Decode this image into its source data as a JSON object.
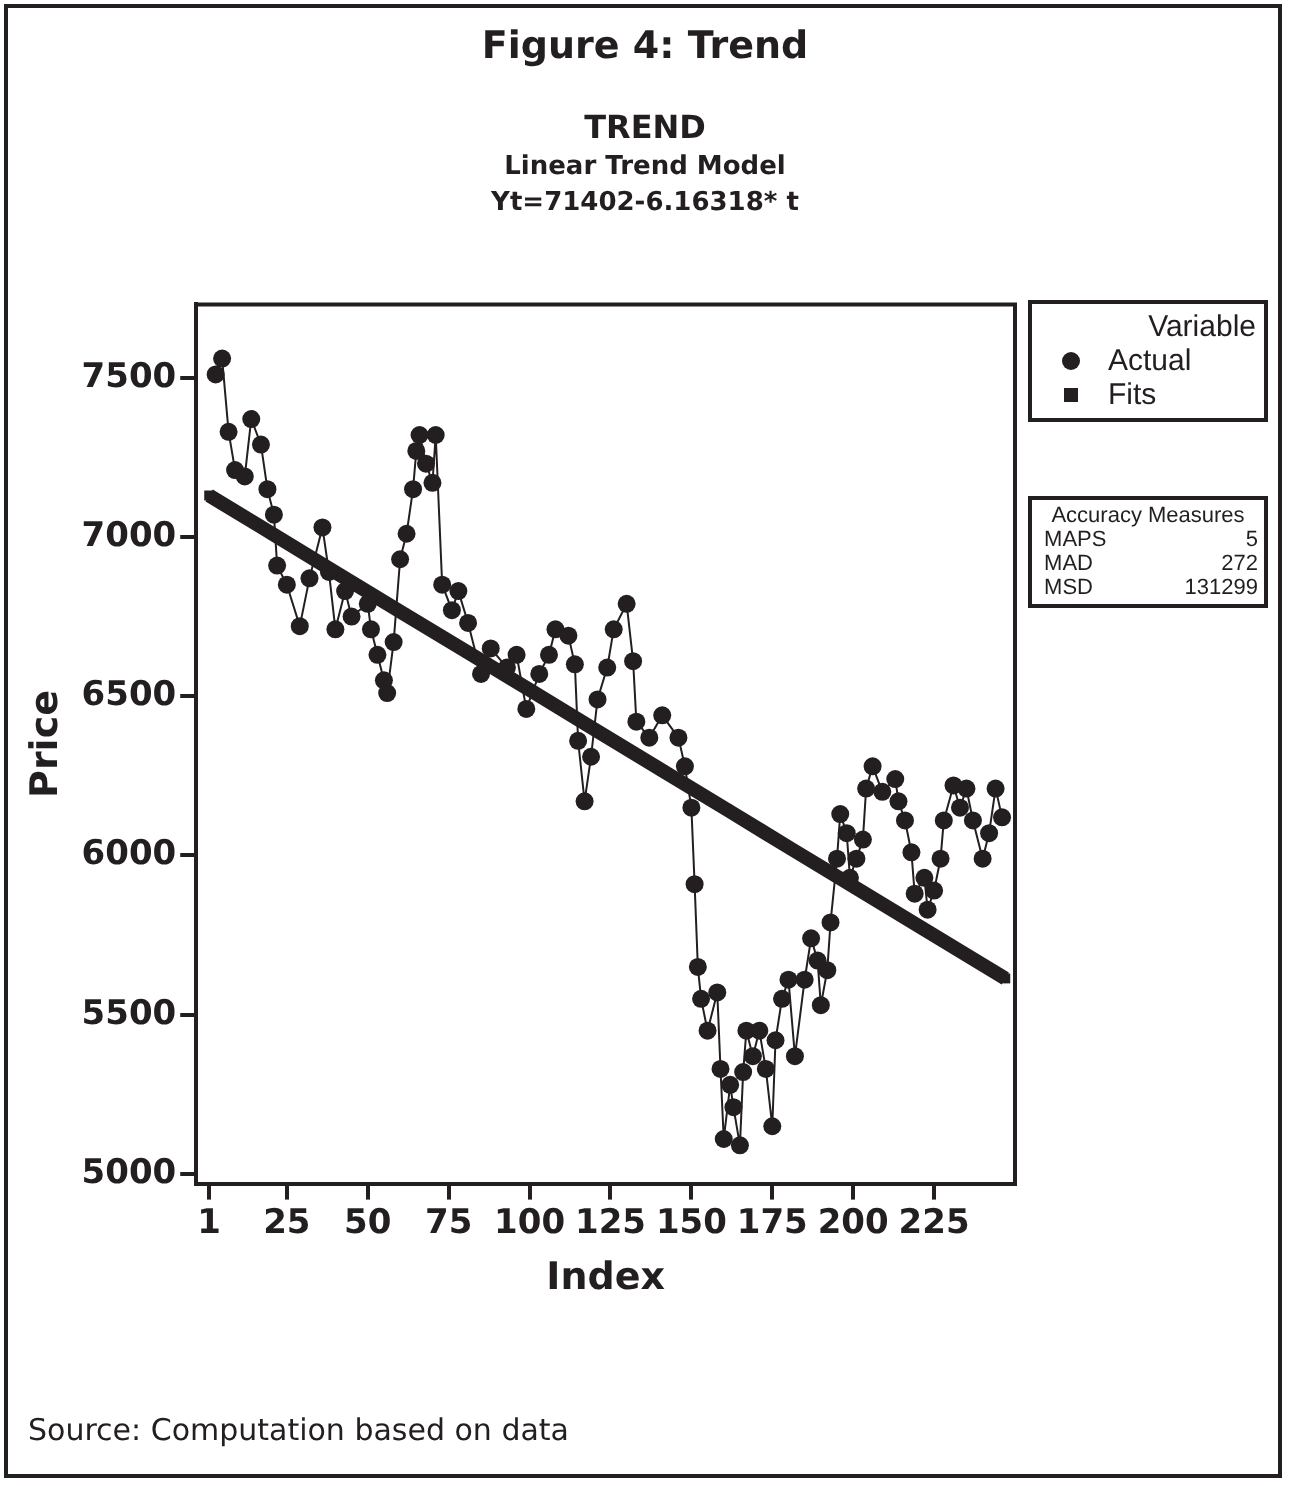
{
  "chart_data": {
    "type": "line",
    "title": "Figure 4:  Trend",
    "subtitle": "TREND",
    "xlabel": "Index",
    "ylabel": "Price",
    "legend_title": "Variable",
    "annotations": [
      "Linear Trend Model",
      "Yt=71402-6.16318* t",
      "Accuracy Measures",
      "MAPS 5",
      "MAD 272",
      "MSD 131299",
      "Source: Computation based on data"
    ],
    "xlim": [
      -3,
      250
    ],
    "xticks": [
      1,
      25,
      50,
      75,
      100,
      125,
      150,
      175,
      200,
      225
    ],
    "ylim": [
      4970,
      7730
    ],
    "yticks": [
      5000,
      5500,
      6000,
      6500,
      7000,
      7500
    ],
    "grid": false,
    "legend": "right",
    "series": [
      {
        "name": "Actual",
        "color": "#231f20",
        "marker": "circle",
        "x": [
          3,
          5,
          7,
          9,
          12,
          14,
          17,
          19,
          21,
          22,
          25,
          29,
          32,
          36,
          38,
          40,
          43,
          45,
          50,
          51,
          53,
          55,
          56,
          58,
          60,
          62,
          64,
          65,
          66,
          68,
          70,
          71,
          73,
          76,
          78,
          81,
          85,
          88,
          93,
          96,
          99,
          103,
          106,
          108,
          112,
          114,
          115,
          117,
          119,
          121,
          124,
          126,
          130,
          132,
          133,
          137,
          141,
          146,
          148,
          150,
          151,
          152,
          153,
          155,
          158,
          159,
          160,
          162,
          163,
          165,
          166,
          167,
          169,
          171,
          173,
          175,
          176,
          178,
          180,
          182,
          185,
          187,
          189,
          190,
          192,
          193,
          195,
          196,
          198,
          199,
          201,
          203,
          204,
          206,
          209,
          213,
          214,
          216,
          218,
          219,
          222,
          223,
          225,
          227,
          228,
          231,
          233,
          235,
          237,
          240,
          242,
          244,
          246
        ],
        "values": [
          7510,
          7560,
          7330,
          7210,
          7190,
          7370,
          7290,
          7150,
          7070,
          6910,
          6850,
          6720,
          6870,
          7030,
          6890,
          6710,
          6830,
          6750,
          6790,
          6710,
          6630,
          6550,
          6510,
          6670,
          6930,
          7010,
          7150,
          7270,
          7320,
          7230,
          7170,
          7320,
          6850,
          6770,
          6830,
          6730,
          6570,
          6650,
          6590,
          6630,
          6460,
          6570,
          6630,
          6710,
          6690,
          6600,
          6360,
          6170,
          6310,
          6490,
          6590,
          6710,
          6790,
          6610,
          6420,
          6370,
          6440,
          6370,
          6280,
          6150,
          5910,
          5650,
          5550,
          5450,
          5570,
          5330,
          5110,
          5280,
          5210,
          5090,
          5320,
          5450,
          5370,
          5450,
          5330,
          5150,
          5420,
          5550,
          5610,
          5370,
          5610,
          5740,
          5670,
          5530,
          5640,
          5790,
          5990,
          6130,
          6070,
          5930,
          5990,
          6050,
          6210,
          6280,
          6200,
          6240,
          6170,
          6110,
          6010,
          5880,
          5930,
          5830,
          5890,
          5990,
          6110,
          6220,
          6150,
          6210,
          6110,
          5990,
          6070,
          6210,
          6120
        ]
      },
      {
        "name": "Fits",
        "type": "line",
        "color": "#231f20",
        "marker": "square",
        "x": [
          1,
          21,
          41,
          61,
          81,
          101,
          121,
          141,
          161,
          181,
          201,
          221,
          247
        ],
        "values": [
          7130,
          7007,
          6883,
          6760,
          6637,
          6514,
          6390,
          6267,
          6144,
          6020,
          5897,
          5774,
          5614
        ]
      }
    ]
  }
}
